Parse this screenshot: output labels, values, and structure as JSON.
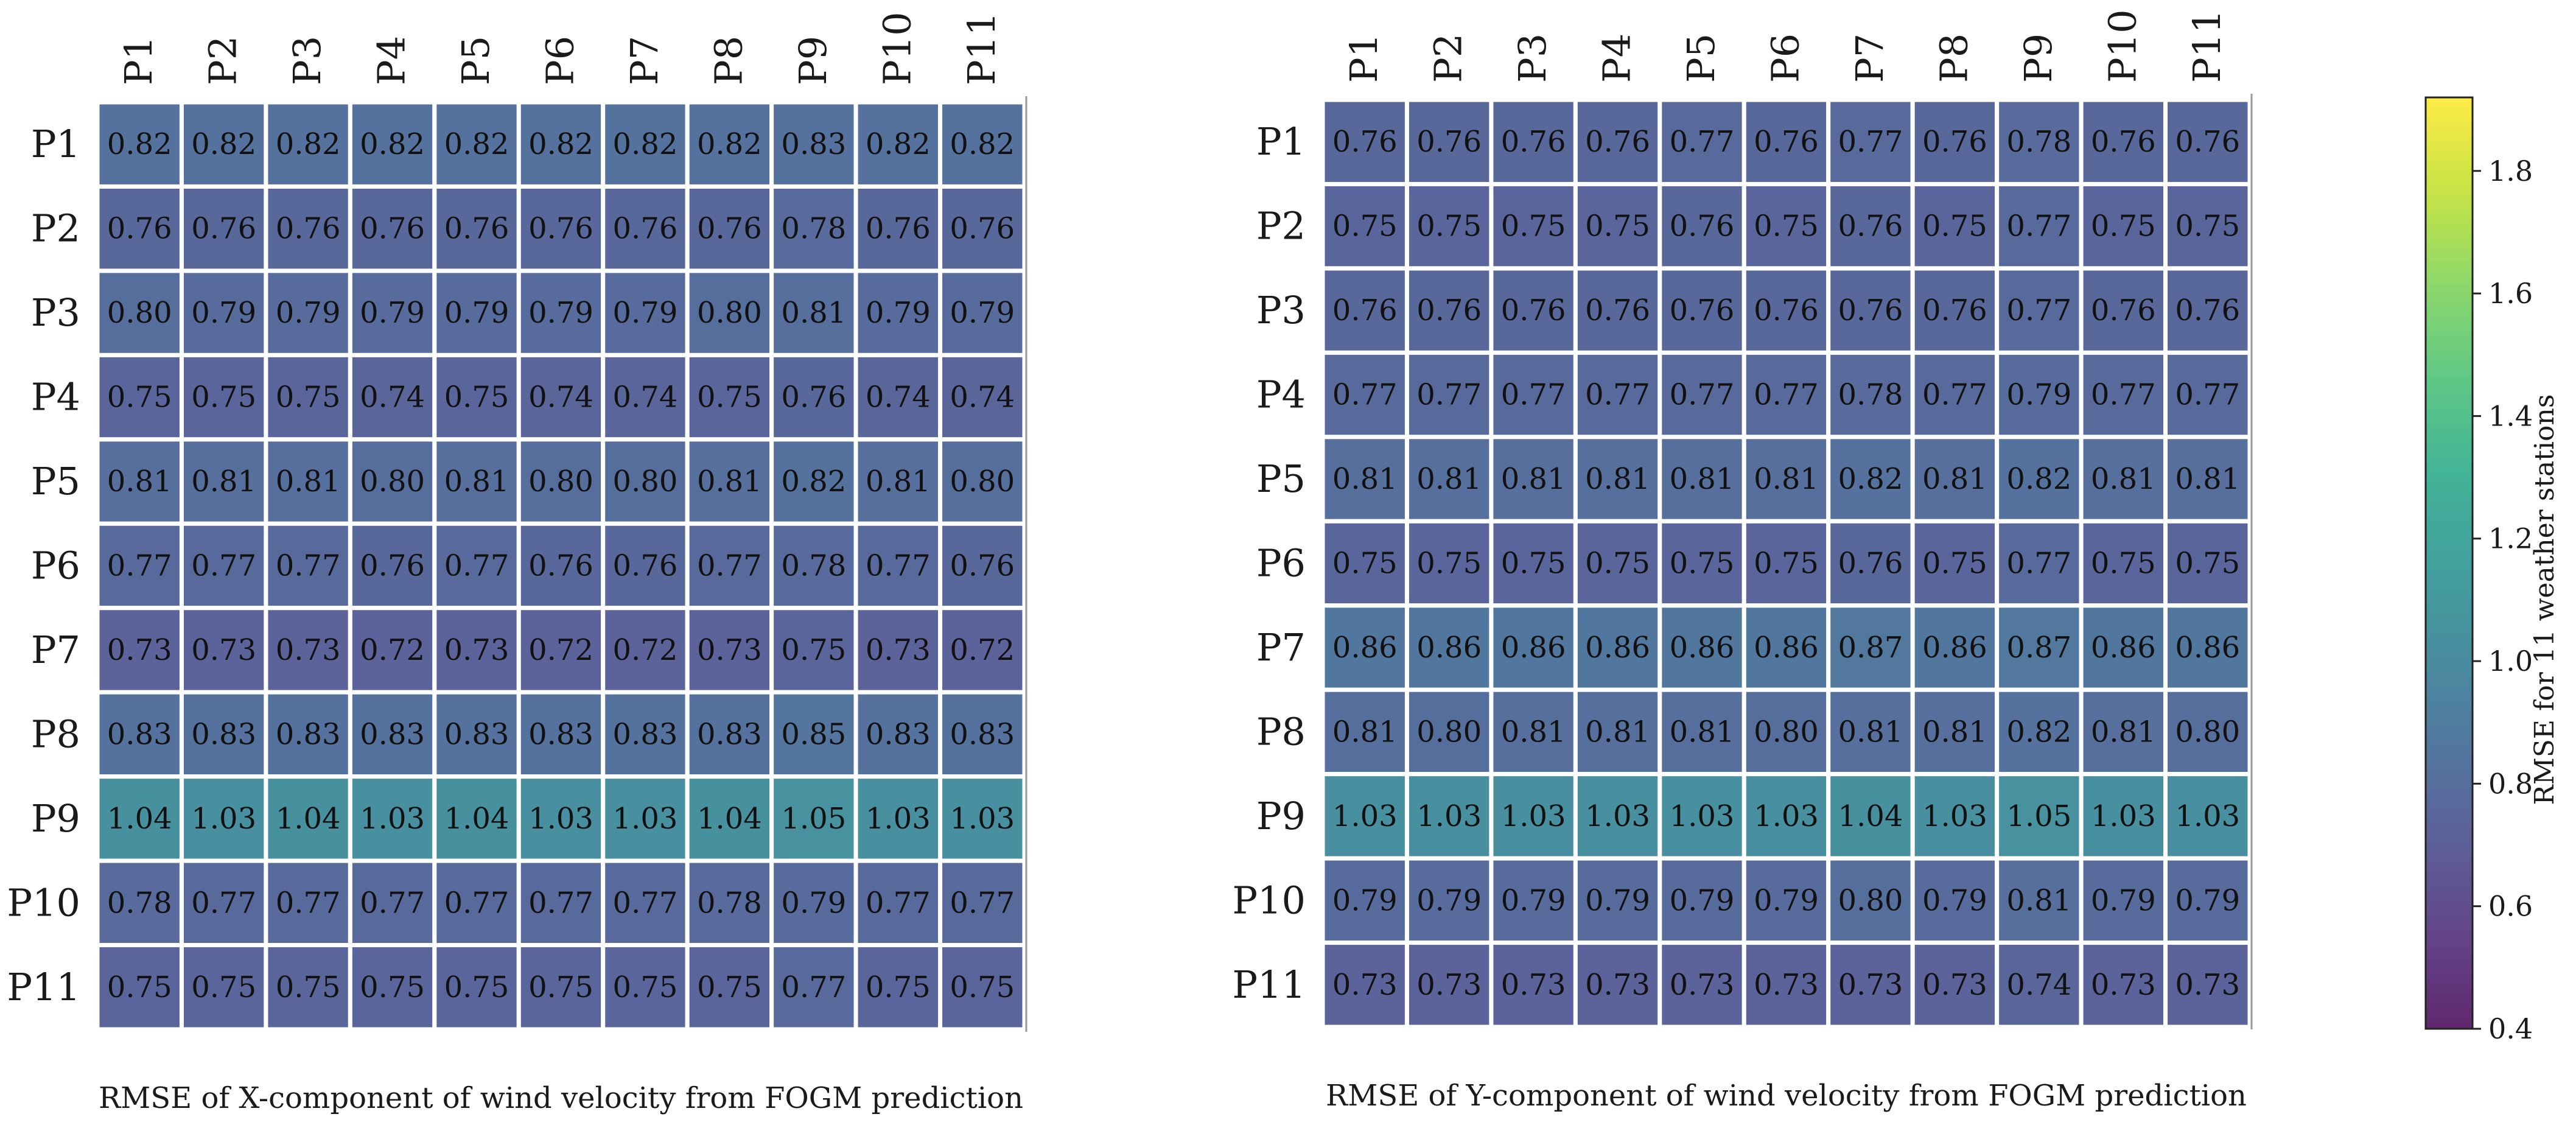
{
  "chart_data": [
    {
      "type": "heatmap",
      "title": "RMSE of X-component of wind velocity from FOGM prediction",
      "x_categories": [
        "P1",
        "P2",
        "P3",
        "P4",
        "P5",
        "P6",
        "P7",
        "P8",
        "P9",
        "P10",
        "P11"
      ],
      "y_categories": [
        "P1",
        "P2",
        "P3",
        "P4",
        "P5",
        "P6",
        "P7",
        "P8",
        "P9",
        "P10",
        "P11"
      ],
      "values": [
        [
          0.82,
          0.82,
          0.82,
          0.82,
          0.82,
          0.82,
          0.82,
          0.82,
          0.83,
          0.82,
          0.82
        ],
        [
          0.76,
          0.76,
          0.76,
          0.76,
          0.76,
          0.76,
          0.76,
          0.76,
          0.78,
          0.76,
          0.76
        ],
        [
          0.8,
          0.79,
          0.79,
          0.79,
          0.79,
          0.79,
          0.79,
          0.8,
          0.81,
          0.79,
          0.79
        ],
        [
          0.75,
          0.75,
          0.75,
          0.74,
          0.75,
          0.74,
          0.74,
          0.75,
          0.76,
          0.74,
          0.74
        ],
        [
          0.81,
          0.81,
          0.81,
          0.8,
          0.81,
          0.8,
          0.8,
          0.81,
          0.82,
          0.81,
          0.8
        ],
        [
          0.77,
          0.77,
          0.77,
          0.76,
          0.77,
          0.76,
          0.76,
          0.77,
          0.78,
          0.77,
          0.76
        ],
        [
          0.73,
          0.73,
          0.73,
          0.72,
          0.73,
          0.72,
          0.72,
          0.73,
          0.75,
          0.73,
          0.72
        ],
        [
          0.83,
          0.83,
          0.83,
          0.83,
          0.83,
          0.83,
          0.83,
          0.83,
          0.85,
          0.83,
          0.83
        ],
        [
          1.04,
          1.03,
          1.04,
          1.03,
          1.04,
          1.03,
          1.03,
          1.04,
          1.05,
          1.03,
          1.03
        ],
        [
          0.78,
          0.77,
          0.77,
          0.77,
          0.77,
          0.77,
          0.77,
          0.78,
          0.79,
          0.77,
          0.77
        ],
        [
          0.75,
          0.75,
          0.75,
          0.75,
          0.75,
          0.75,
          0.75,
          0.75,
          0.77,
          0.75,
          0.75
        ]
      ]
    },
    {
      "type": "heatmap",
      "title": "RMSE of Y-component of wind velocity from FOGM prediction",
      "x_categories": [
        "P1",
        "P2",
        "P3",
        "P4",
        "P5",
        "P6",
        "P7",
        "P8",
        "P9",
        "P10",
        "P11"
      ],
      "y_categories": [
        "P1",
        "P2",
        "P3",
        "P4",
        "P5",
        "P6",
        "P7",
        "P8",
        "P9",
        "P10",
        "P11"
      ],
      "values": [
        [
          0.76,
          0.76,
          0.76,
          0.76,
          0.77,
          0.76,
          0.77,
          0.76,
          0.78,
          0.76,
          0.76
        ],
        [
          0.75,
          0.75,
          0.75,
          0.75,
          0.76,
          0.75,
          0.76,
          0.75,
          0.77,
          0.75,
          0.75
        ],
        [
          0.76,
          0.76,
          0.76,
          0.76,
          0.76,
          0.76,
          0.76,
          0.76,
          0.77,
          0.76,
          0.76
        ],
        [
          0.77,
          0.77,
          0.77,
          0.77,
          0.77,
          0.77,
          0.78,
          0.77,
          0.79,
          0.77,
          0.77
        ],
        [
          0.81,
          0.81,
          0.81,
          0.81,
          0.81,
          0.81,
          0.82,
          0.81,
          0.82,
          0.81,
          0.81
        ],
        [
          0.75,
          0.75,
          0.75,
          0.75,
          0.75,
          0.75,
          0.76,
          0.75,
          0.77,
          0.75,
          0.75
        ],
        [
          0.86,
          0.86,
          0.86,
          0.86,
          0.86,
          0.86,
          0.87,
          0.86,
          0.87,
          0.86,
          0.86
        ],
        [
          0.81,
          0.8,
          0.81,
          0.81,
          0.81,
          0.8,
          0.81,
          0.81,
          0.82,
          0.81,
          0.8
        ],
        [
          1.03,
          1.03,
          1.03,
          1.03,
          1.03,
          1.03,
          1.04,
          1.03,
          1.05,
          1.03,
          1.03
        ],
        [
          0.79,
          0.79,
          0.79,
          0.79,
          0.79,
          0.79,
          0.8,
          0.79,
          0.81,
          0.79,
          0.79
        ],
        [
          0.73,
          0.73,
          0.73,
          0.73,
          0.73,
          0.73,
          0.73,
          0.73,
          0.74,
          0.73,
          0.73
        ]
      ]
    }
  ],
  "colorbar": {
    "label": "RMSE for 11 weather stations",
    "range": [
      0.4,
      1.92
    ],
    "ticks": [
      "0.4",
      "0.6",
      "0.8",
      "1.0",
      "1.2",
      "1.4",
      "1.6",
      "1.8"
    ],
    "colormap": "viridis",
    "alpha": 0.85
  },
  "colors": {
    "cell_border": "#ffffff",
    "axis_line": "#9a9a9a",
    "text": "#1a1a1a"
  }
}
